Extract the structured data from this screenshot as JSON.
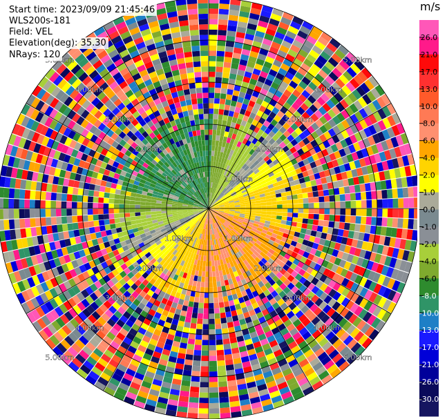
{
  "header": {
    "start_time": "Start time: 2023/09/09 21:45:46",
    "instrument": "WLS200s-181",
    "field": "Field: VEL",
    "elevation": "Elevation(deg): 35.30",
    "nrays": "NRays: 120"
  },
  "chart_data": {
    "type": "heatmap",
    "title": "",
    "projection": "polar-ppi",
    "field": "VEL",
    "elevation_deg": 35.3,
    "n_rays": 120,
    "range_rings_km": [
      1.0,
      2.0,
      3.0,
      4.0,
      5.0
    ],
    "max_range_km": 5.0,
    "ring_labels": [
      "1.00km",
      "2.00km",
      "3.00km",
      "4.00km",
      "5.00km"
    ],
    "unit": "m/s",
    "colorbar": {
      "ticks": [
        "26.0",
        "21.0",
        "17.0",
        "13.0",
        "10.0",
        "8.0",
        "6.0",
        "4.0",
        "2.0",
        "1.0",
        "0.0",
        "-1.0",
        "-2.0",
        "-4.0",
        "-6.0",
        "-8.0",
        "-10.0",
        "-13.0",
        "-17.0",
        "-21.0",
        "-26.0",
        "-30.0"
      ],
      "colors": [
        "#ff57b8",
        "#ff1a8a",
        "#ff0a0a",
        "#ff3030",
        "#ff5a2a",
        "#ff7a55",
        "#ff9070",
        "#ffa600",
        "#ffd400",
        "#ffff00",
        "#aaaa99",
        "#7a8a90",
        "#8a8f96",
        "#a8cf3a",
        "#7faa2e",
        "#2e8b2e",
        "#2f9467",
        "#1e7fc6",
        "#1a1aff",
        "#0000d8",
        "#00009a",
        "#0a0a5a",
        "#151560"
      ]
    }
  }
}
